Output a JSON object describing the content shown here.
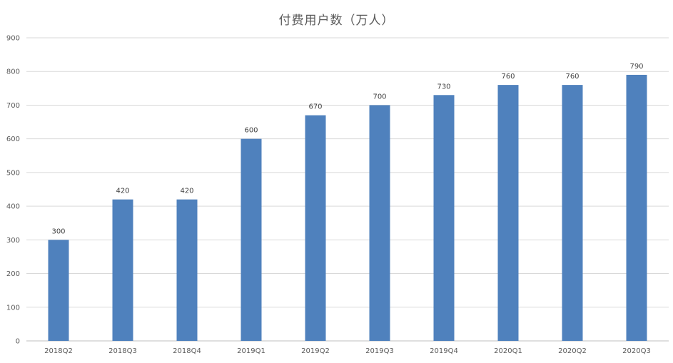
{
  "chart_data": {
    "type": "bar",
    "title": "付费用户数（万人）",
    "xlabel": "",
    "ylabel": "",
    "categories": [
      "2018Q2",
      "2018Q3",
      "2018Q4",
      "2019Q1",
      "2019Q2",
      "2019Q3",
      "2019Q4",
      "2020Q1",
      "2020Q2",
      "2020Q3"
    ],
    "values": [
      300,
      420,
      420,
      600,
      670,
      700,
      730,
      760,
      760,
      790
    ],
    "ylim": [
      0,
      900
    ],
    "yticks": [
      0,
      100,
      200,
      300,
      400,
      500,
      600,
      700,
      800,
      900
    ],
    "grid": true,
    "data_labels": true,
    "bar_color": "#4F81BD",
    "grid_color": "#D9D9D9"
  }
}
